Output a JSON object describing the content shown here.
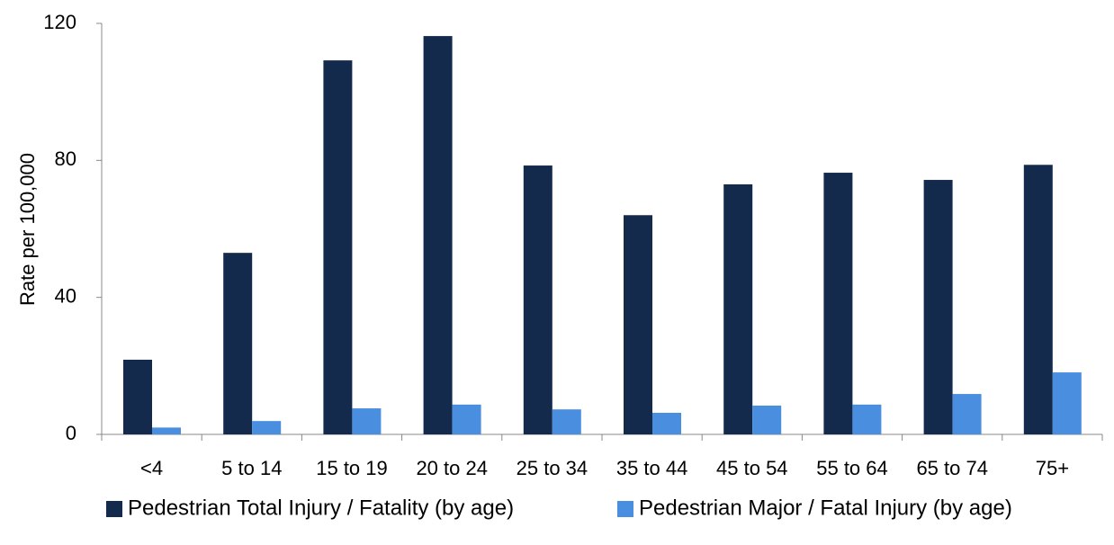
{
  "chart_data": {
    "type": "bar",
    "y_label": "Rate per 100,000",
    "categories": [
      "<4",
      "5 to 14",
      "15 to 19",
      "20 to 24",
      "25 to 34",
      "35 to 44",
      "45 to 54",
      "55 to 64",
      "65 to 74",
      "75+"
    ],
    "series": [
      {
        "name": "Pedestrian Total Injury / Fatality (by age)",
        "color": "#142a4c",
        "values": [
          21.8,
          53,
          109.2,
          116.3,
          78.5,
          64,
          73,
          76.4,
          74.3,
          78.7
        ]
      },
      {
        "name": "Pedestrian Major / Fatal Injury (by age)",
        "color": "#4a8fdf",
        "values": [
          2,
          3.9,
          7.6,
          8.7,
          7.3,
          6.3,
          8.4,
          8.7,
          11.8,
          18.1
        ]
      }
    ],
    "ylim": [
      0,
      120
    ],
    "yticks": [
      0,
      40,
      80,
      120
    ],
    "grid": false,
    "legend": "bottom"
  }
}
